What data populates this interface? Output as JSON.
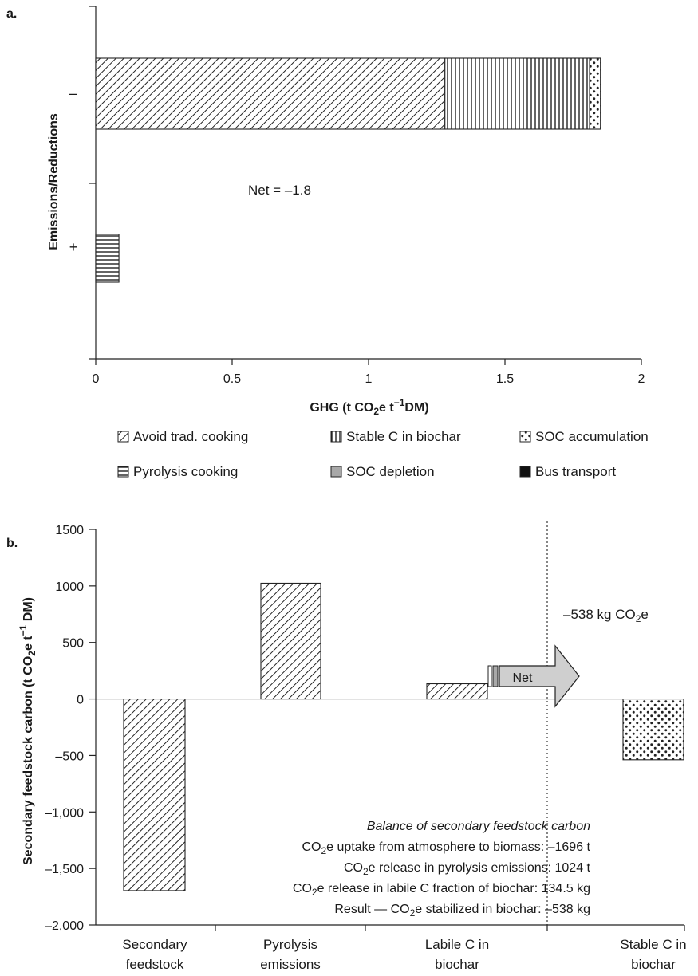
{
  "chart_data": [
    {
      "panel_label": "a.",
      "type": "bar",
      "orientation": "horizontal",
      "stacked": true,
      "xlabel": "GHG (t CO2e t−1DM)",
      "ylabel": "Emissions/Reductions",
      "categories": [
        "–",
        "+"
      ],
      "xlim": [
        0,
        2
      ],
      "xticks": [
        "0",
        "0.5",
        "1",
        "1.5",
        "2"
      ],
      "series": [
        {
          "name": "Avoid trad. cooking",
          "pattern": "diag",
          "values": [
            1.28,
            0
          ]
        },
        {
          "name": "Stable C in biochar",
          "pattern": "vlines",
          "values": [
            0.53,
            0
          ]
        },
        {
          "name": "SOC accumulation",
          "pattern": "dots",
          "values": [
            0.04,
            0
          ]
        },
        {
          "name": "Pyrolysis cooking",
          "pattern": "hlines",
          "values": [
            0,
            0.085
          ]
        },
        {
          "name": "SOC depletion",
          "pattern": "gray",
          "values": [
            0,
            0
          ]
        },
        {
          "name": "Bus transport",
          "pattern": "black",
          "values": [
            0,
            0
          ]
        }
      ],
      "annotation": "Net = –1.8",
      "legend_position": "bottom"
    },
    {
      "panel_label": "b.",
      "type": "bar",
      "ylabel": "Secondary feedstock carbon (t CO2e t−1 DM)",
      "ylim": [
        -2000,
        1500
      ],
      "yticks": [
        "1500",
        "1000",
        "500",
        "0",
        "–500",
        "–1,000",
        "–1,500",
        "–2,000"
      ],
      "categories": [
        [
          "Secondary",
          "feedstock"
        ],
        [
          "Pyrolysis",
          "emissions"
        ],
        [
          "Labile C in",
          "biochar"
        ],
        [
          "Stable C in",
          "biochar"
        ]
      ],
      "values": [
        -1696,
        1024,
        134.5,
        -538
      ],
      "patterns": [
        "diag",
        "diag",
        "diag",
        "dots"
      ],
      "arrow_label": "Net",
      "net_label": "–538 kg CO2e",
      "balance_box": {
        "title": "Balance of secondary feedstock carbon",
        "lines": [
          "CO2e uptake from atmosphere to biomass:  –1696 t",
          "CO2e release in pyrolysis emissions: 1024 t",
          "CO2e release in labile C fraction of biochar: 134.5 kg",
          "Result — CO2e stabilized in biochar: –538 kg"
        ]
      }
    }
  ]
}
